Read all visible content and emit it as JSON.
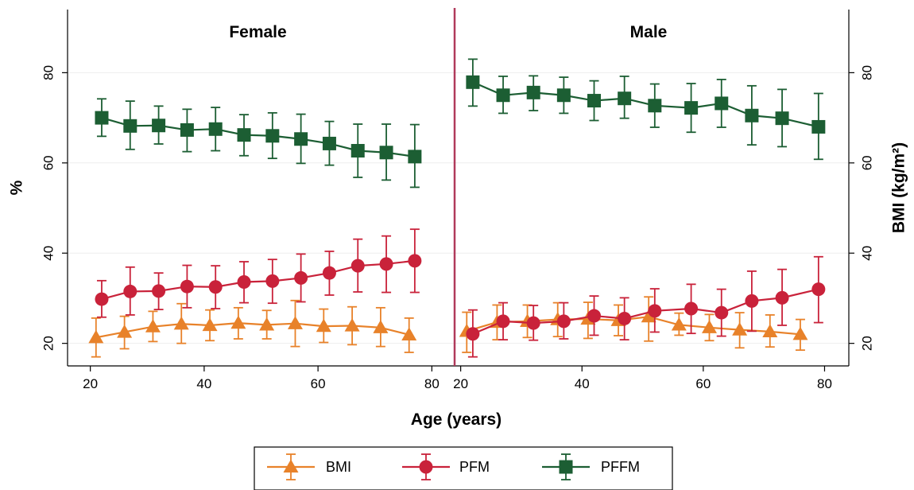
{
  "chart_data": {
    "type": "line",
    "ylabel_left": "%",
    "ylabel_right": "BMI (kg/m²)",
    "xlabel": "Age (years)",
    "ylim": [
      15,
      94
    ],
    "yticks": [
      20,
      40,
      60,
      80
    ],
    "xticks": [
      20,
      40,
      60,
      80
    ],
    "grid": true,
    "legend_position": "bottom",
    "colors": {
      "BMI": "#e8822a",
      "PFM": "#c9223a",
      "PFFM": "#1c5e33"
    },
    "panels": [
      {
        "title": "Female",
        "xlim": [
          16,
          84
        ],
        "series": [
          {
            "name": "BMI",
            "marker": "triangle",
            "x": [
              21,
              26,
              31,
              36,
              41,
              46,
              51,
              56,
              61,
              66,
              71,
              76
            ],
            "y": [
              21.3,
              22.5,
              23.7,
              24.3,
              24.0,
              24.5,
              24.1,
              24.4,
              23.8,
              23.9,
              23.5,
              21.9
            ],
            "lo": [
              17.0,
              18.8,
              20.4,
              20.0,
              20.6,
              21.0,
              21.0,
              19.3,
              20.2,
              19.7,
              19.3,
              18.0
            ],
            "hi": [
              25.6,
              26.0,
              27.1,
              28.8,
              27.4,
              27.9,
              27.3,
              29.5,
              27.6,
              28.1,
              27.9,
              25.6
            ]
          },
          {
            "name": "PFM",
            "marker": "circle",
            "x": [
              22,
              27,
              32,
              37,
              42,
              47,
              52,
              57,
              62,
              67,
              72,
              77
            ],
            "y": [
              29.8,
              31.5,
              31.6,
              32.6,
              32.5,
              33.6,
              33.8,
              34.5,
              35.6,
              37.2,
              37.6,
              38.3
            ],
            "lo": [
              25.8,
              26.3,
              27.5,
              27.9,
              27.7,
              29.0,
              28.9,
              29.2,
              30.7,
              31.4,
              31.3,
              31.3
            ],
            "hi": [
              33.9,
              36.9,
              35.6,
              37.3,
              37.2,
              38.1,
              38.6,
              39.8,
              40.4,
              43.1,
              43.8,
              45.3
            ]
          },
          {
            "name": "PFFM",
            "marker": "square",
            "x": [
              22,
              27,
              32,
              37,
              42,
              47,
              52,
              57,
              62,
              67,
              72,
              77
            ],
            "y": [
              70.0,
              68.2,
              68.3,
              67.3,
              67.5,
              66.2,
              66.0,
              65.3,
              64.3,
              62.7,
              62.3,
              61.4
            ],
            "lo": [
              65.9,
              63.0,
              64.2,
              62.5,
              62.7,
              61.6,
              61.0,
              59.9,
              59.5,
              56.8,
              56.2,
              54.6
            ],
            "hi": [
              74.2,
              73.7,
              72.6,
              71.9,
              72.3,
              70.7,
              71.1,
              70.8,
              69.2,
              68.6,
              68.6,
              68.5
            ]
          }
        ]
      },
      {
        "title": "Male",
        "xlim": [
          19,
          84
        ],
        "series": [
          {
            "name": "BMI",
            "marker": "triangle",
            "x": [
              21,
              26,
              31,
              36,
              41,
              46,
              51,
              56,
              61,
              66,
              71,
              76
            ],
            "y": [
              22.7,
              24.7,
              24.9,
              25.3,
              25.4,
              25.1,
              25.9,
              24.1,
              23.5,
              23.0,
              22.6,
              22.0
            ],
            "lo": [
              18.0,
              20.8,
              21.3,
              21.5,
              21.1,
              21.7,
              20.5,
              21.8,
              20.6,
              19.0,
              19.2,
              18.5
            ],
            "hi": [
              26.9,
              28.5,
              28.5,
              29.0,
              29.1,
              28.5,
              30.3,
              26.7,
              26.4,
              26.8,
              26.3,
              25.3
            ]
          },
          {
            "name": "PFM",
            "marker": "circle",
            "x": [
              22,
              27,
              32,
              37,
              42,
              47,
              52,
              58,
              63,
              68,
              73,
              79
            ],
            "y": [
              22.1,
              24.9,
              24.5,
              24.9,
              26.1,
              25.5,
              27.2,
              27.7,
              26.8,
              29.4,
              30.1,
              32.0
            ],
            "lo": [
              17.0,
              20.8,
              20.7,
              21.0,
              21.8,
              20.8,
              22.5,
              22.2,
              21.6,
              22.7,
              24.0,
              24.6
            ],
            "hi": [
              27.4,
              29.0,
              28.4,
              29.0,
              30.5,
              30.1,
              32.1,
              33.1,
              32.0,
              36.0,
              36.4,
              39.2
            ]
          },
          {
            "name": "PFFM",
            "marker": "square",
            "x": [
              22,
              27,
              32,
              37,
              42,
              47,
              52,
              58,
              63,
              68,
              73,
              79
            ],
            "y": [
              77.9,
              75.0,
              75.6,
              75.0,
              73.8,
              74.3,
              72.7,
              72.2,
              73.2,
              70.5,
              69.9,
              68.0
            ],
            "lo": [
              72.6,
              71.0,
              71.6,
              71.0,
              69.4,
              69.9,
              67.9,
              66.8,
              67.9,
              64.0,
              63.6,
              60.8
            ],
            "hi": [
              83.0,
              79.2,
              79.3,
              79.0,
              78.2,
              79.2,
              77.5,
              77.6,
              78.5,
              77.1,
              76.3,
              75.4
            ]
          }
        ]
      }
    ],
    "legend": [
      "BMI",
      "PFM",
      "PFFM"
    ]
  }
}
